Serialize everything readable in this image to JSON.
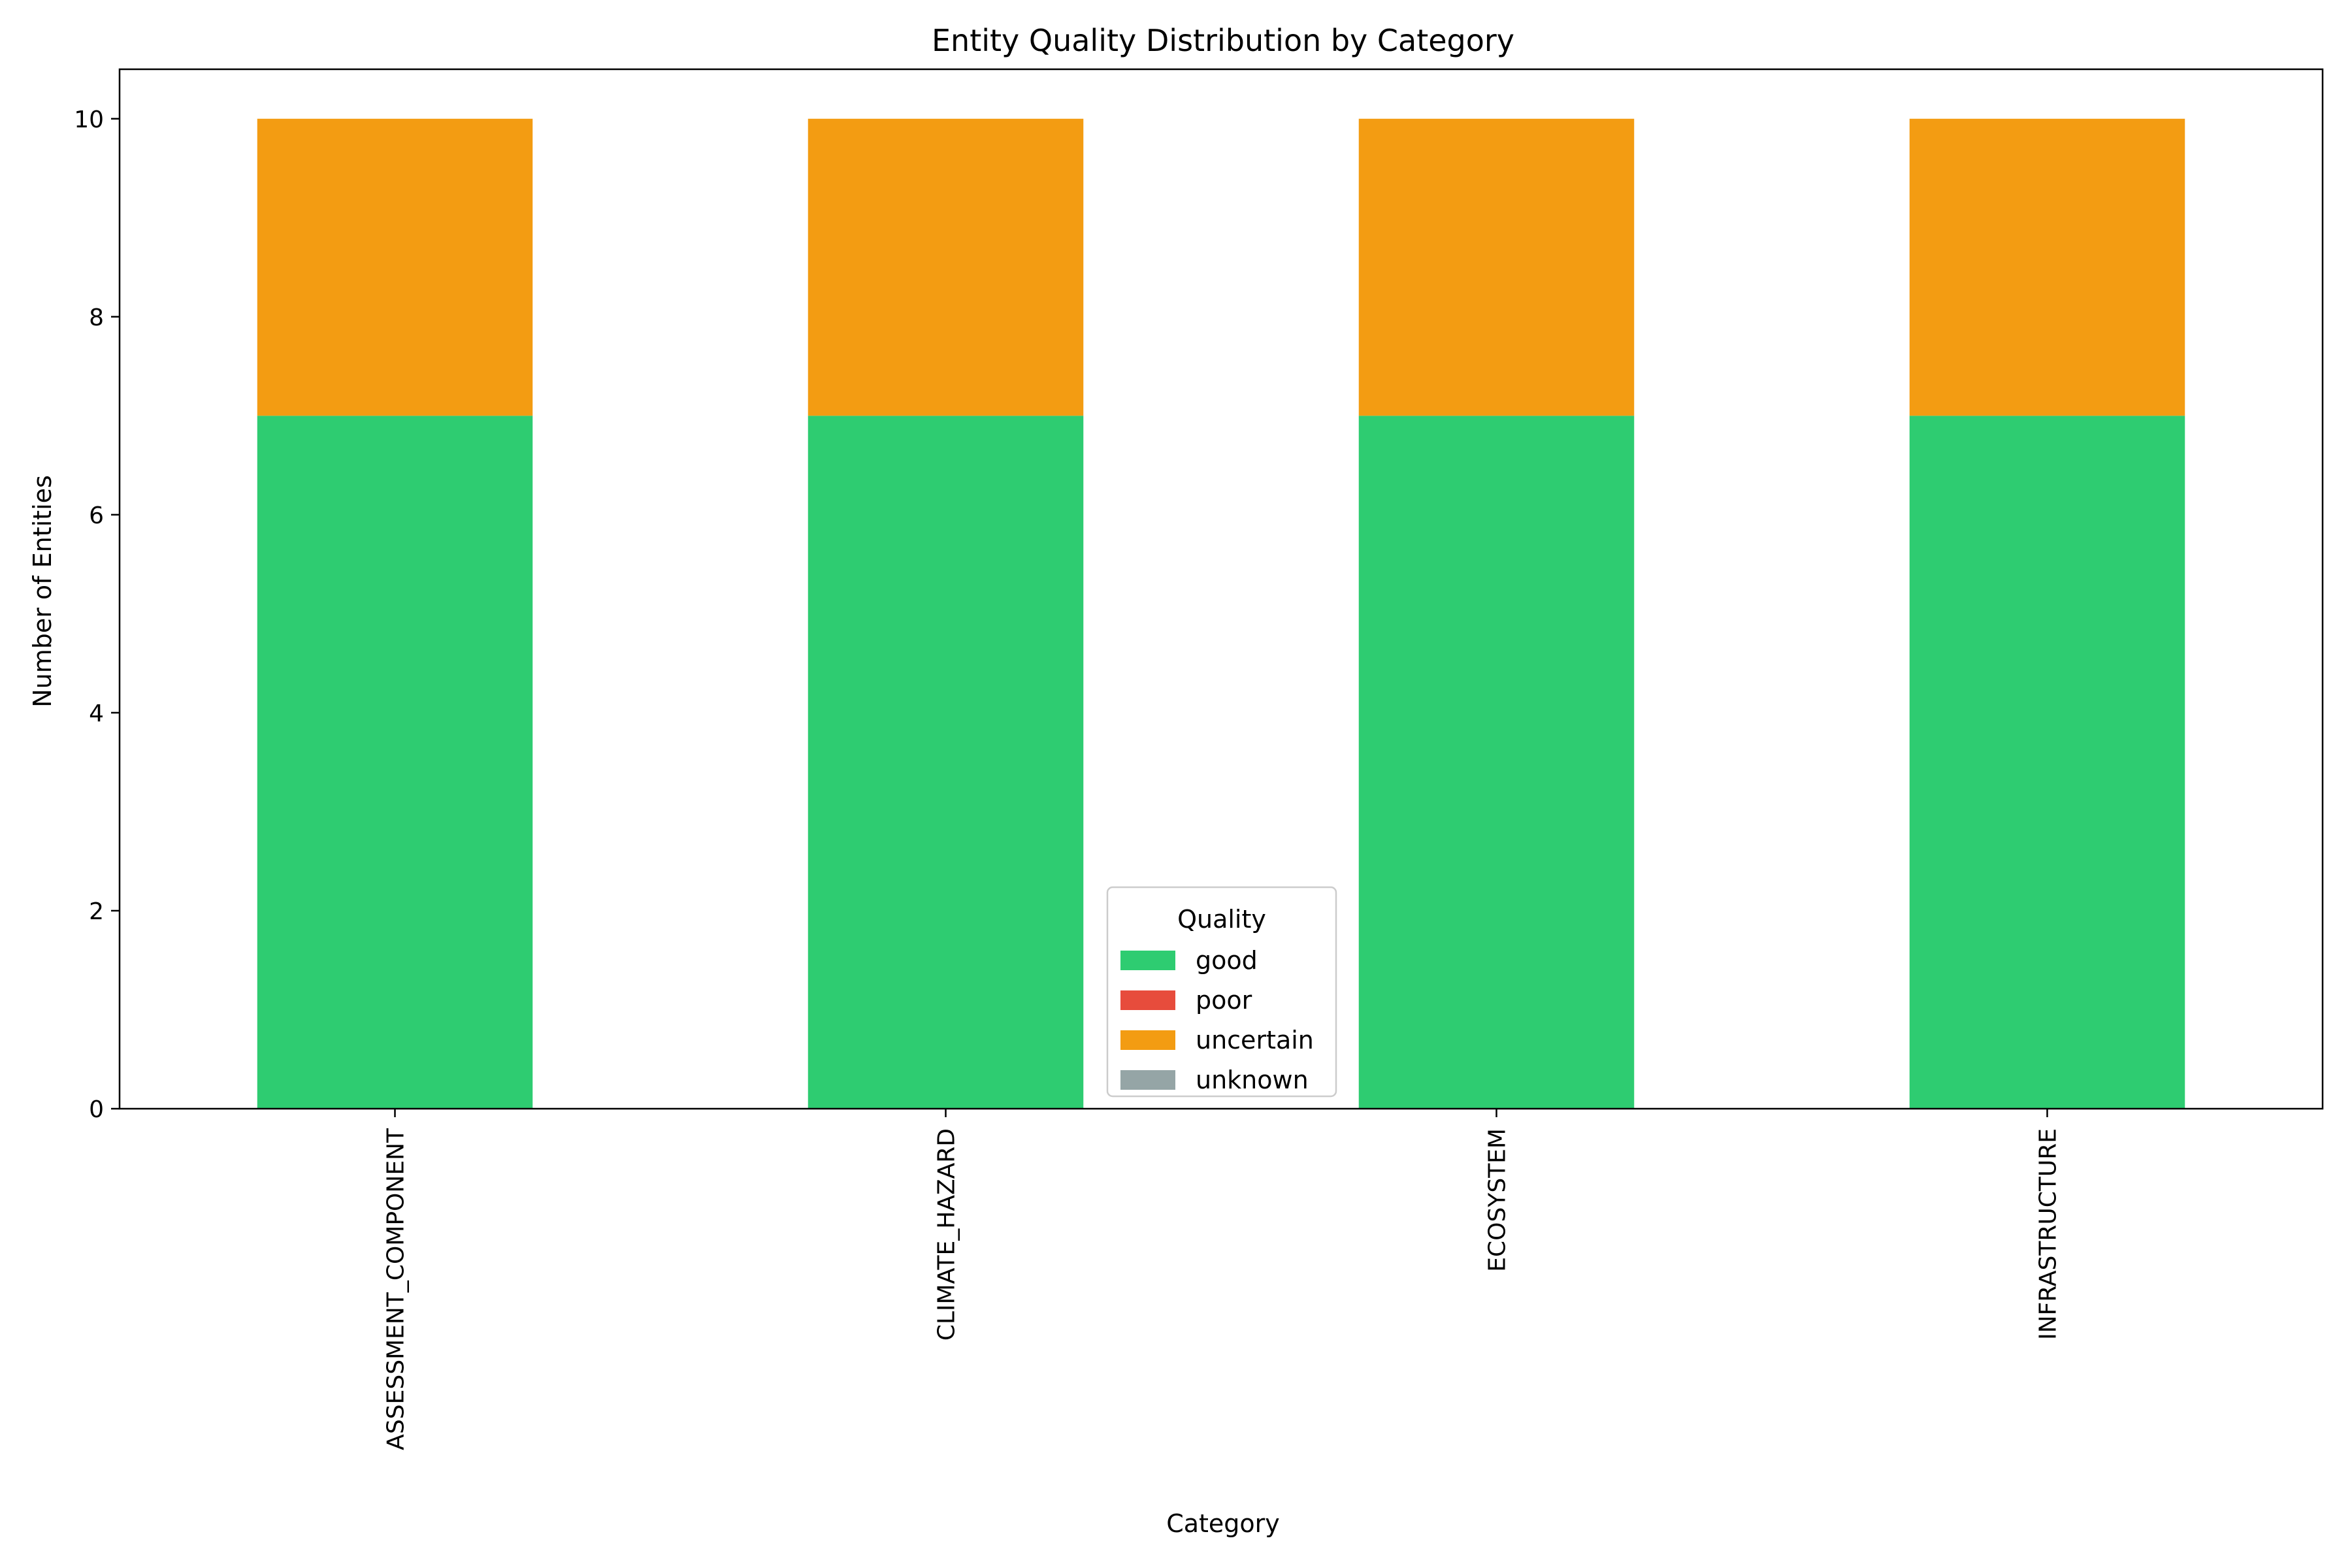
{
  "chart_data": {
    "type": "bar",
    "stacked": true,
    "title": "Entity Quality Distribution by Category",
    "xlabel": "Category",
    "ylabel": "Number of Entities",
    "categories": [
      "ASSESSMENT_COMPONENT",
      "CLIMATE_HAZARD",
      "ECOSYSTEM",
      "INFRASTRUCTURE"
    ],
    "series": [
      {
        "name": "good",
        "values": [
          7,
          7,
          7,
          7
        ],
        "color": "#2ecc71"
      },
      {
        "name": "poor",
        "values": [
          0,
          0,
          0,
          0
        ],
        "color": "#e74c3c"
      },
      {
        "name": "uncertain",
        "values": [
          3,
          3,
          3,
          3
        ],
        "color": "#f39c12"
      },
      {
        "name": "unknown",
        "values": [
          0,
          0,
          0,
          0
        ],
        "color": "#95a5a6"
      }
    ],
    "ylim": [
      0,
      10.5
    ],
    "yticks": [
      0,
      2,
      4,
      6,
      8,
      10
    ],
    "legend": {
      "title": "Quality",
      "placement": "lower-center"
    },
    "grid": false
  }
}
